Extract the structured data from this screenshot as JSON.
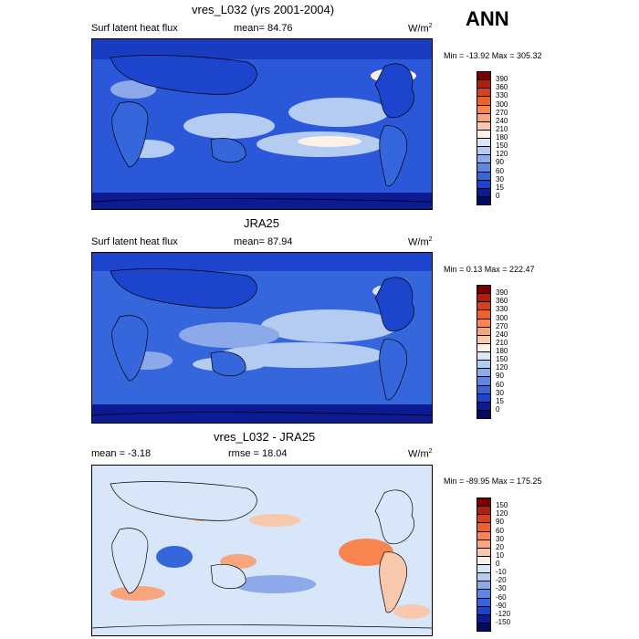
{
  "season": "ANN",
  "panels": [
    {
      "title": "vres_L032 (yrs 2001-2004)",
      "left_label": "Surf latent heat flux",
      "center_label": "mean=  84.76",
      "unit": "W/m",
      "unit_exp": "2",
      "minmax": "Min = -13.92 Max = 305.32",
      "levels": [
        "390",
        "360",
        "330",
        "300",
        "270",
        "240",
        "210",
        "180",
        "150",
        "120",
        "90",
        "60",
        "30",
        "15",
        "0"
      ],
      "colors": [
        "#7a0000",
        "#b01e0e",
        "#d8401c",
        "#f0602a",
        "#f88450",
        "#f8a47c",
        "#f8c8ac",
        "#fdf0e6",
        "#d8e6fa",
        "#b4ccf2",
        "#8caaea",
        "#5c88e4",
        "#3666dc",
        "#1c44cc",
        "#0c1a94",
        "#020a64"
      ]
    },
    {
      "title": "JRA25",
      "left_label": "Surf latent heat flux",
      "center_label": "mean=  87.94",
      "unit": "W/m",
      "unit_exp": "2",
      "minmax": "Min =   0.13 Max = 222.47",
      "levels": [
        "390",
        "360",
        "330",
        "300",
        "270",
        "240",
        "210",
        "180",
        "150",
        "120",
        "90",
        "60",
        "30",
        "15",
        "0"
      ],
      "colors": [
        "#7a0000",
        "#b01e0e",
        "#d8401c",
        "#f0602a",
        "#f88450",
        "#f8a47c",
        "#f8c8ac",
        "#fdf0e6",
        "#d8e6fa",
        "#b4ccf2",
        "#8caaea",
        "#5c88e4",
        "#3666dc",
        "#1c44cc",
        "#0c1a94",
        "#020a64"
      ]
    },
    {
      "title": "vres_L032 - JRA25",
      "left_label": "mean =  -3.18",
      "center_label": "rmse =  18.04",
      "unit": "W/m",
      "unit_exp": "2",
      "minmax": "Min = -89.95 Max = 175.25",
      "levels": [
        "150",
        "120",
        "90",
        "60",
        "30",
        "20",
        "10",
        "0",
        "-10",
        "-20",
        "-30",
        "-60",
        "-90",
        "-120",
        "-150"
      ],
      "colors": [
        "#7a0000",
        "#b01e0e",
        "#d8401c",
        "#f0602a",
        "#f88450",
        "#f8a47c",
        "#f8c8ac",
        "#fdf0e6",
        "#d8e6fa",
        "#b4ccf2",
        "#8caaea",
        "#5c88e4",
        "#3666dc",
        "#1c44cc",
        "#0c1a94",
        "#020a64"
      ]
    }
  ]
}
